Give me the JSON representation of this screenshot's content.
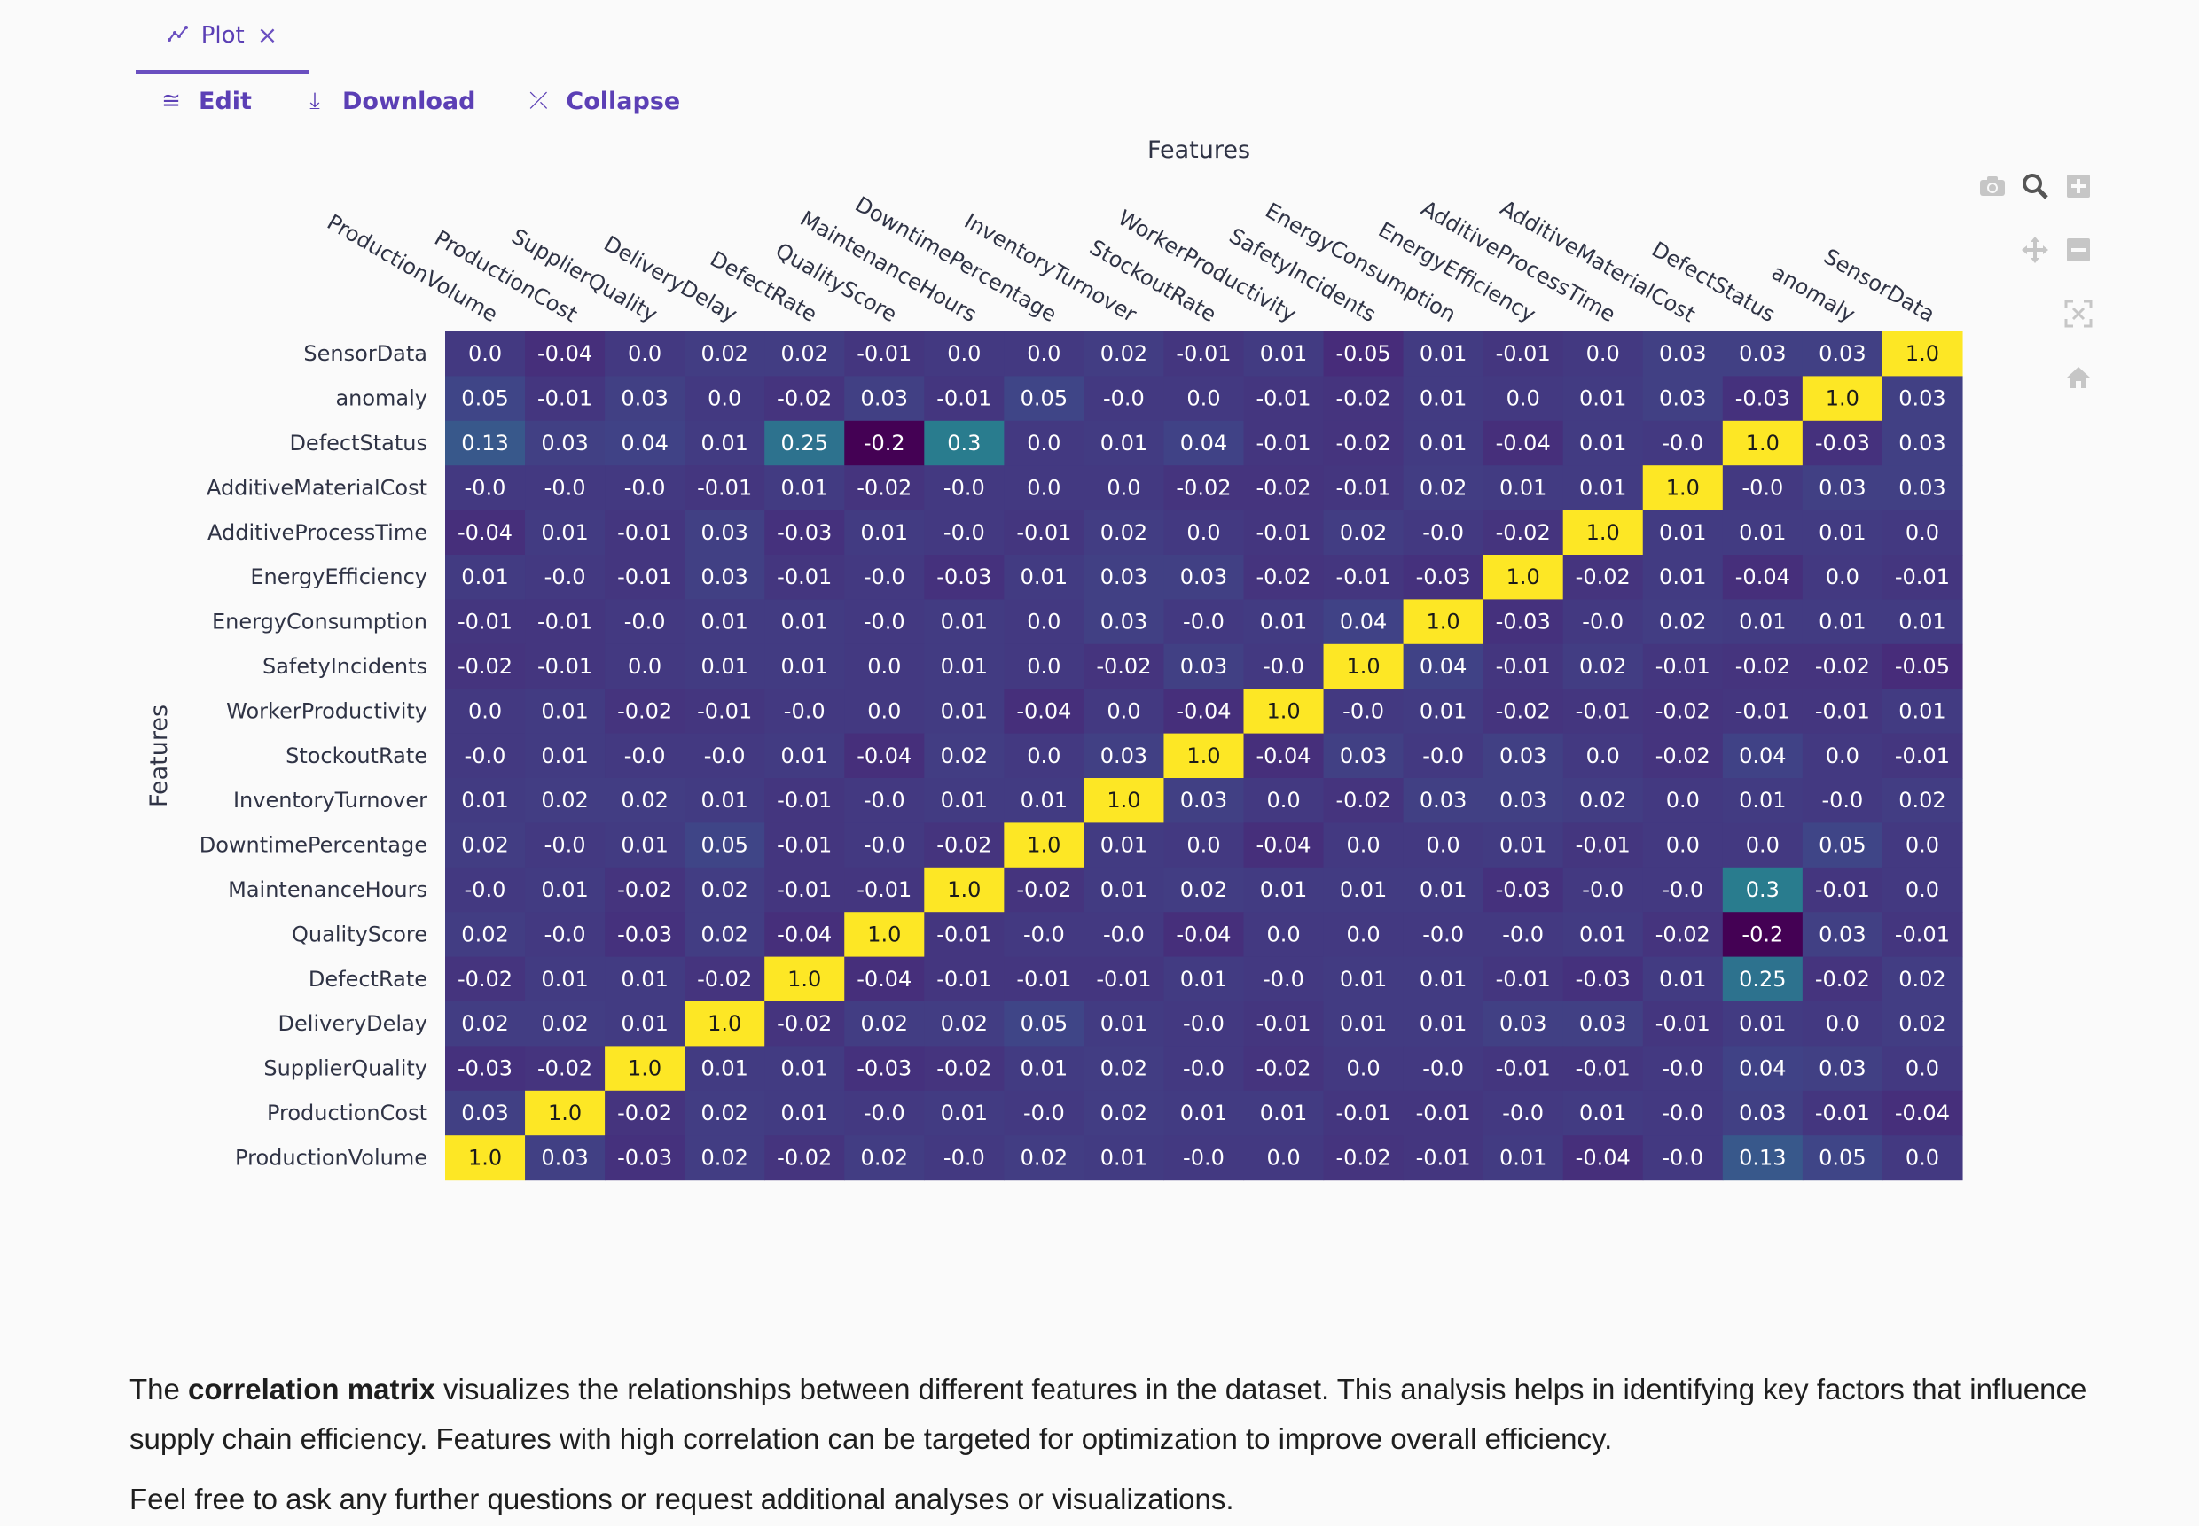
{
  "tab": {
    "label": "Plot",
    "icon": "chart-line-icon",
    "close_icon": "close-icon"
  },
  "toolbar": {
    "edit_label": "Edit",
    "download_label": "Download",
    "collapse_label": "Collapse"
  },
  "modebar": [
    "camera-icon",
    "zoom-icon",
    "zoom-in-icon",
    "pan-icon",
    "zoom-out-icon",
    "autoscale-icon",
    "home-icon"
  ],
  "chart_data": {
    "type": "heatmap",
    "title": "",
    "xlabel": "Features",
    "ylabel": "Features",
    "x_categories": [
      "ProductionVolume",
      "ProductionCost",
      "SupplierQuality",
      "DeliveryDelay",
      "DefectRate",
      "QualityScore",
      "MaintenanceHours",
      "DowntimePercentage",
      "InventoryTurnover",
      "StockoutRate",
      "WorkerProductivity",
      "SafetyIncidents",
      "EnergyConsumption",
      "EnergyEfficiency",
      "AdditiveProcessTime",
      "AdditiveMaterialCost",
      "DefectStatus",
      "anomaly",
      "SensorData"
    ],
    "y_categories_top_to_bottom": [
      "SensorData",
      "anomaly",
      "DefectStatus",
      "AdditiveMaterialCost",
      "AdditiveProcessTime",
      "EnergyEfficiency",
      "EnergyConsumption",
      "SafetyIncidents",
      "WorkerProductivity",
      "StockoutRate",
      "InventoryTurnover",
      "DowntimePercentage",
      "MaintenanceHours",
      "QualityScore",
      "DefectRate",
      "DeliveryDelay",
      "SupplierQuality",
      "ProductionCost",
      "ProductionVolume"
    ],
    "colorscale": [
      "#440154",
      "#482878",
      "#3e4989",
      "#31688e",
      "#26828e",
      "#1f9e89",
      "#35b779",
      "#6ece58",
      "#b5de2b",
      "#fde725"
    ],
    "zmin": -0.2,
    "zmax": 1.0,
    "labels": [
      [
        "0.0",
        "-0.04",
        "0.0",
        "0.02",
        "0.02",
        "-0.01",
        "0.0",
        "0.0",
        "0.02",
        "-0.01",
        "0.01",
        "-0.05",
        "0.01",
        "-0.01",
        "0.0",
        "0.03",
        "0.03",
        "0.03",
        "1.0"
      ],
      [
        "0.05",
        "-0.01",
        "0.03",
        "0.0",
        "-0.02",
        "0.03",
        "-0.01",
        "0.05",
        "-0.0",
        "0.0",
        "-0.01",
        "-0.02",
        "0.01",
        "0.0",
        "0.01",
        "0.03",
        "-0.03",
        "1.0",
        "0.03"
      ],
      [
        "0.13",
        "0.03",
        "0.04",
        "0.01",
        "0.25",
        "-0.2",
        "0.3",
        "0.0",
        "0.01",
        "0.04",
        "-0.01",
        "-0.02",
        "0.01",
        "-0.04",
        "0.01",
        "-0.0",
        "1.0",
        "-0.03",
        "0.03"
      ],
      [
        "-0.0",
        "-0.0",
        "-0.0",
        "-0.01",
        "0.01",
        "-0.02",
        "-0.0",
        "0.0",
        "0.0",
        "-0.02",
        "-0.02",
        "-0.01",
        "0.02",
        "0.01",
        "0.01",
        "1.0",
        "-0.0",
        "0.03",
        "0.03"
      ],
      [
        "-0.04",
        "0.01",
        "-0.01",
        "0.03",
        "-0.03",
        "0.01",
        "-0.0",
        "-0.01",
        "0.02",
        "0.0",
        "-0.01",
        "0.02",
        "-0.0",
        "-0.02",
        "1.0",
        "0.01",
        "0.01",
        "0.01",
        "0.0"
      ],
      [
        "0.01",
        "-0.0",
        "-0.01",
        "0.03",
        "-0.01",
        "-0.0",
        "-0.03",
        "0.01",
        "0.03",
        "0.03",
        "-0.02",
        "-0.01",
        "-0.03",
        "1.0",
        "-0.02",
        "0.01",
        "-0.04",
        "0.0",
        "-0.01"
      ],
      [
        "-0.01",
        "-0.01",
        "-0.0",
        "0.01",
        "0.01",
        "-0.0",
        "0.01",
        "0.0",
        "0.03",
        "-0.0",
        "0.01",
        "0.04",
        "1.0",
        "-0.03",
        "-0.0",
        "0.02",
        "0.01",
        "0.01",
        "0.01"
      ],
      [
        "-0.02",
        "-0.01",
        "0.0",
        "0.01",
        "0.01",
        "0.0",
        "0.01",
        "0.0",
        "-0.02",
        "0.03",
        "-0.0",
        "1.0",
        "0.04",
        "-0.01",
        "0.02",
        "-0.01",
        "-0.02",
        "-0.02",
        "-0.05"
      ],
      [
        "0.0",
        "0.01",
        "-0.02",
        "-0.01",
        "-0.0",
        "0.0",
        "0.01",
        "-0.04",
        "0.0",
        "-0.04",
        "1.0",
        "-0.0",
        "0.01",
        "-0.02",
        "-0.01",
        "-0.02",
        "-0.01",
        "-0.01",
        "0.01"
      ],
      [
        "-0.0",
        "0.01",
        "-0.0",
        "-0.0",
        "0.01",
        "-0.04",
        "0.02",
        "0.0",
        "0.03",
        "1.0",
        "-0.04",
        "0.03",
        "-0.0",
        "0.03",
        "0.0",
        "-0.02",
        "0.04",
        "0.0",
        "-0.01"
      ],
      [
        "0.01",
        "0.02",
        "0.02",
        "0.01",
        "-0.01",
        "-0.0",
        "0.01",
        "0.01",
        "1.0",
        "0.03",
        "0.0",
        "-0.02",
        "0.03",
        "0.03",
        "0.02",
        "0.0",
        "0.01",
        "-0.0",
        "0.02"
      ],
      [
        "0.02",
        "-0.0",
        "0.01",
        "0.05",
        "-0.01",
        "-0.0",
        "-0.02",
        "1.0",
        "0.01",
        "0.0",
        "-0.04",
        "0.0",
        "0.0",
        "0.01",
        "-0.01",
        "0.0",
        "0.0",
        "0.05",
        "0.0"
      ],
      [
        "-0.0",
        "0.01",
        "-0.02",
        "0.02",
        "-0.01",
        "-0.01",
        "1.0",
        "-0.02",
        "0.01",
        "0.02",
        "0.01",
        "0.01",
        "0.01",
        "-0.03",
        "-0.0",
        "-0.0",
        "0.3",
        "-0.01",
        "0.0"
      ],
      [
        "0.02",
        "-0.0",
        "-0.03",
        "0.02",
        "-0.04",
        "1.0",
        "-0.01",
        "-0.0",
        "-0.0",
        "-0.04",
        "0.0",
        "0.0",
        "-0.0",
        "-0.0",
        "0.01",
        "-0.02",
        "-0.2",
        "0.03",
        "-0.01"
      ],
      [
        "-0.02",
        "0.01",
        "0.01",
        "-0.02",
        "1.0",
        "-0.04",
        "-0.01",
        "-0.01",
        "-0.01",
        "0.01",
        "-0.0",
        "0.01",
        "0.01",
        "-0.01",
        "-0.03",
        "0.01",
        "0.25",
        "-0.02",
        "0.02"
      ],
      [
        "0.02",
        "0.02",
        "0.01",
        "1.0",
        "-0.02",
        "0.02",
        "0.02",
        "0.05",
        "0.01",
        "-0.0",
        "-0.01",
        "0.01",
        "0.01",
        "0.03",
        "0.03",
        "-0.01",
        "0.01",
        "0.0",
        "0.02"
      ],
      [
        "-0.03",
        "-0.02",
        "1.0",
        "0.01",
        "0.01",
        "-0.03",
        "-0.02",
        "0.01",
        "0.02",
        "-0.0",
        "-0.02",
        "0.0",
        "-0.0",
        "-0.01",
        "-0.01",
        "-0.0",
        "0.04",
        "0.03",
        "0.0"
      ],
      [
        "0.03",
        "1.0",
        "-0.02",
        "0.02",
        "0.01",
        "-0.0",
        "0.01",
        "-0.0",
        "0.02",
        "0.01",
        "0.01",
        "-0.01",
        "-0.01",
        "-0.0",
        "0.01",
        "-0.0",
        "0.03",
        "-0.01",
        "-0.04"
      ],
      [
        "1.0",
        "0.03",
        "-0.03",
        "0.02",
        "-0.02",
        "0.02",
        "-0.0",
        "0.02",
        "0.01",
        "-0.0",
        "0.0",
        "-0.02",
        "-0.01",
        "0.01",
        "-0.04",
        "-0.0",
        "0.13",
        "0.05",
        "0.0"
      ]
    ]
  },
  "description": {
    "p1_before": "The ",
    "p1_bold": "correlation matrix",
    "p1_after": " visualizes the relationships between different features in the dataset. This analysis helps in identifying key factors that influence supply chain efficiency. Features with high correlation can be targeted for optimization to improve overall efficiency.",
    "p2": "Feel free to ask any further questions or request additional analyses or visualizations."
  }
}
